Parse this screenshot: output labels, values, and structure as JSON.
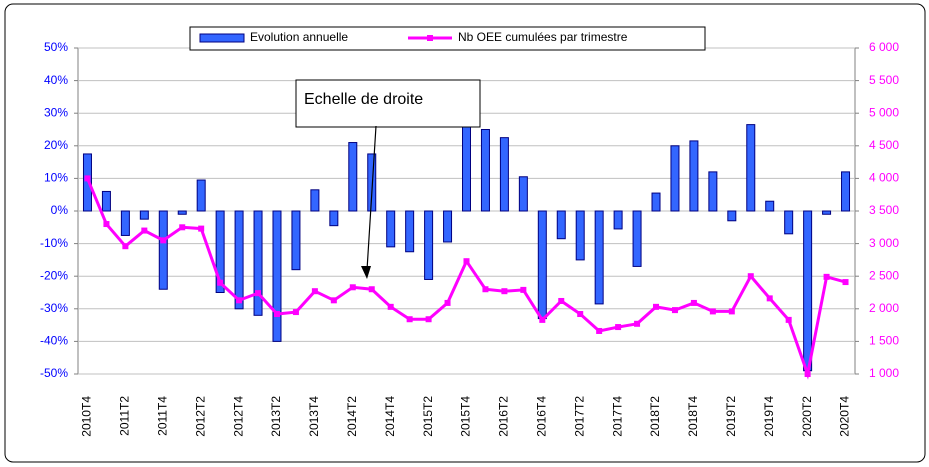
{
  "chart_data": {
    "type": "bar-line",
    "annotation": "Echelle de droite",
    "categories": [
      "2010T4",
      null,
      "2011T2",
      null,
      "2011T4",
      null,
      "2012T2",
      null,
      "2012T4",
      null,
      "2013T2",
      null,
      "2013T4",
      null,
      "2014T2",
      null,
      "2014T4",
      null,
      "2015T2",
      null,
      "2015T4",
      null,
      "2016T2",
      null,
      "2016T4",
      null,
      "2017T2",
      null,
      "2017T4",
      null,
      "2018T2",
      null,
      "2018T4",
      null,
      "2019T2",
      null,
      "2019T4",
      null,
      "2020T2",
      null,
      "2020T4"
    ],
    "series": [
      {
        "name": "Evolution annuelle",
        "type": "bar",
        "color": "#3366ff",
        "values": [
          17.5,
          6,
          -7.5,
          -2.5,
          -24,
          -1,
          9.5,
          -25,
          -30,
          -32,
          -40,
          -18,
          6.5,
          -4.5,
          21,
          17.5,
          -11,
          -12.5,
          -21,
          -9.5,
          26,
          25,
          22.5,
          10.5,
          -33,
          -8.5,
          -15,
          -28.5,
          -5.5,
          -17,
          5.5,
          20,
          21.5,
          12,
          -3,
          26.5,
          3,
          -7,
          -49,
          -1,
          12
        ]
      },
      {
        "name": "Nb OEE cumulées par trimestre",
        "type": "line",
        "axis": "y2",
        "color": "#ff00ff",
        "values": [
          4000,
          3300,
          2960,
          3200,
          3050,
          3250,
          3230,
          2400,
          2130,
          2240,
          1920,
          1950,
          2270,
          2130,
          2330,
          2300,
          2030,
          1840,
          1840,
          2090,
          2730,
          2300,
          2270,
          2290,
          1830,
          2120,
          1920,
          1660,
          1720,
          1770,
          2030,
          1980,
          2090,
          1960,
          1960,
          2500,
          2160,
          1830,
          1000,
          2490,
          2410
        ]
      }
    ],
    "ylim": [
      -50,
      50
    ],
    "yticks": [
      {
        "value": -50,
        "label": "-50%"
      },
      {
        "value": -40,
        "label": "-40%"
      },
      {
        "value": -30,
        "label": "-30%"
      },
      {
        "value": -20,
        "label": "-20%"
      },
      {
        "value": -10,
        "label": "-10%"
      },
      {
        "value": 0,
        "label": "0%"
      },
      {
        "value": 10,
        "label": "10%"
      },
      {
        "value": 20,
        "label": "20%"
      },
      {
        "value": 30,
        "label": "30%"
      },
      {
        "value": 40,
        "label": "40%"
      },
      {
        "value": 50,
        "label": "50%"
      }
    ],
    "y2lim": [
      1000,
      6000
    ],
    "y2ticks": [
      {
        "value": 1000,
        "label": "1 000"
      },
      {
        "value": 1500,
        "label": "1 500"
      },
      {
        "value": 2000,
        "label": "2 000"
      },
      {
        "value": 2500,
        "label": "2 500"
      },
      {
        "value": 3000,
        "label": "3 000"
      },
      {
        "value": 3500,
        "label": "3 500"
      },
      {
        "value": 4000,
        "label": "4 000"
      },
      {
        "value": 4500,
        "label": "4 500"
      },
      {
        "value": 5000,
        "label": "5 000"
      },
      {
        "value": 5500,
        "label": "5 500"
      },
      {
        "value": 6000,
        "label": "6 000"
      }
    ],
    "grid": true,
    "legend": "top"
  }
}
